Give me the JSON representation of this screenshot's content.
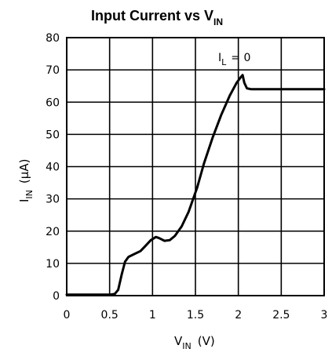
{
  "chart_data": {
    "type": "line",
    "title": "Input Current vs V",
    "title_subscript": "IN",
    "xlabel": "V",
    "xlabel_subscript": "IN",
    "xlabel_unit": "(V)",
    "ylabel": "I",
    "ylabel_subscript": "IN",
    "ylabel_unit": "(μA)",
    "xlim": [
      0,
      3
    ],
    "ylim": [
      0,
      80
    ],
    "x_ticks": [
      "0",
      "0.5",
      "1",
      "1.5",
      "2",
      "2.5",
      "3"
    ],
    "y_ticks": [
      "0",
      "10",
      "20",
      "30",
      "40",
      "50",
      "60",
      "70",
      "80"
    ],
    "grid": true,
    "annotation": {
      "text_main": "I",
      "text_sub": "L",
      "text_rest": "= 0"
    },
    "series": [
      {
        "color": "#000000",
        "points": [
          [
            0,
            0.3
          ],
          [
            0.5,
            0.3
          ],
          [
            0.56,
            0.5
          ],
          [
            0.6,
            1.8
          ],
          [
            0.64,
            6.5
          ],
          [
            0.68,
            10.5
          ],
          [
            0.72,
            12
          ],
          [
            0.78,
            12.8
          ],
          [
            0.86,
            13.8
          ],
          [
            0.92,
            15.5
          ],
          [
            0.98,
            17.2
          ],
          [
            1.04,
            18.2
          ],
          [
            1.08,
            17.8
          ],
          [
            1.14,
            17
          ],
          [
            1.2,
            17.2
          ],
          [
            1.26,
            18.5
          ],
          [
            1.34,
            21.5
          ],
          [
            1.42,
            26
          ],
          [
            1.52,
            33.5
          ],
          [
            1.6,
            41
          ],
          [
            1.7,
            49
          ],
          [
            1.8,
            56
          ],
          [
            1.9,
            62
          ],
          [
            1.98,
            66
          ],
          [
            2.03,
            67.8
          ],
          [
            2.05,
            68.4
          ],
          [
            2.07,
            66
          ],
          [
            2.1,
            64.3
          ],
          [
            2.15,
            64
          ],
          [
            2.5,
            64
          ],
          [
            3,
            64
          ]
        ]
      }
    ]
  }
}
